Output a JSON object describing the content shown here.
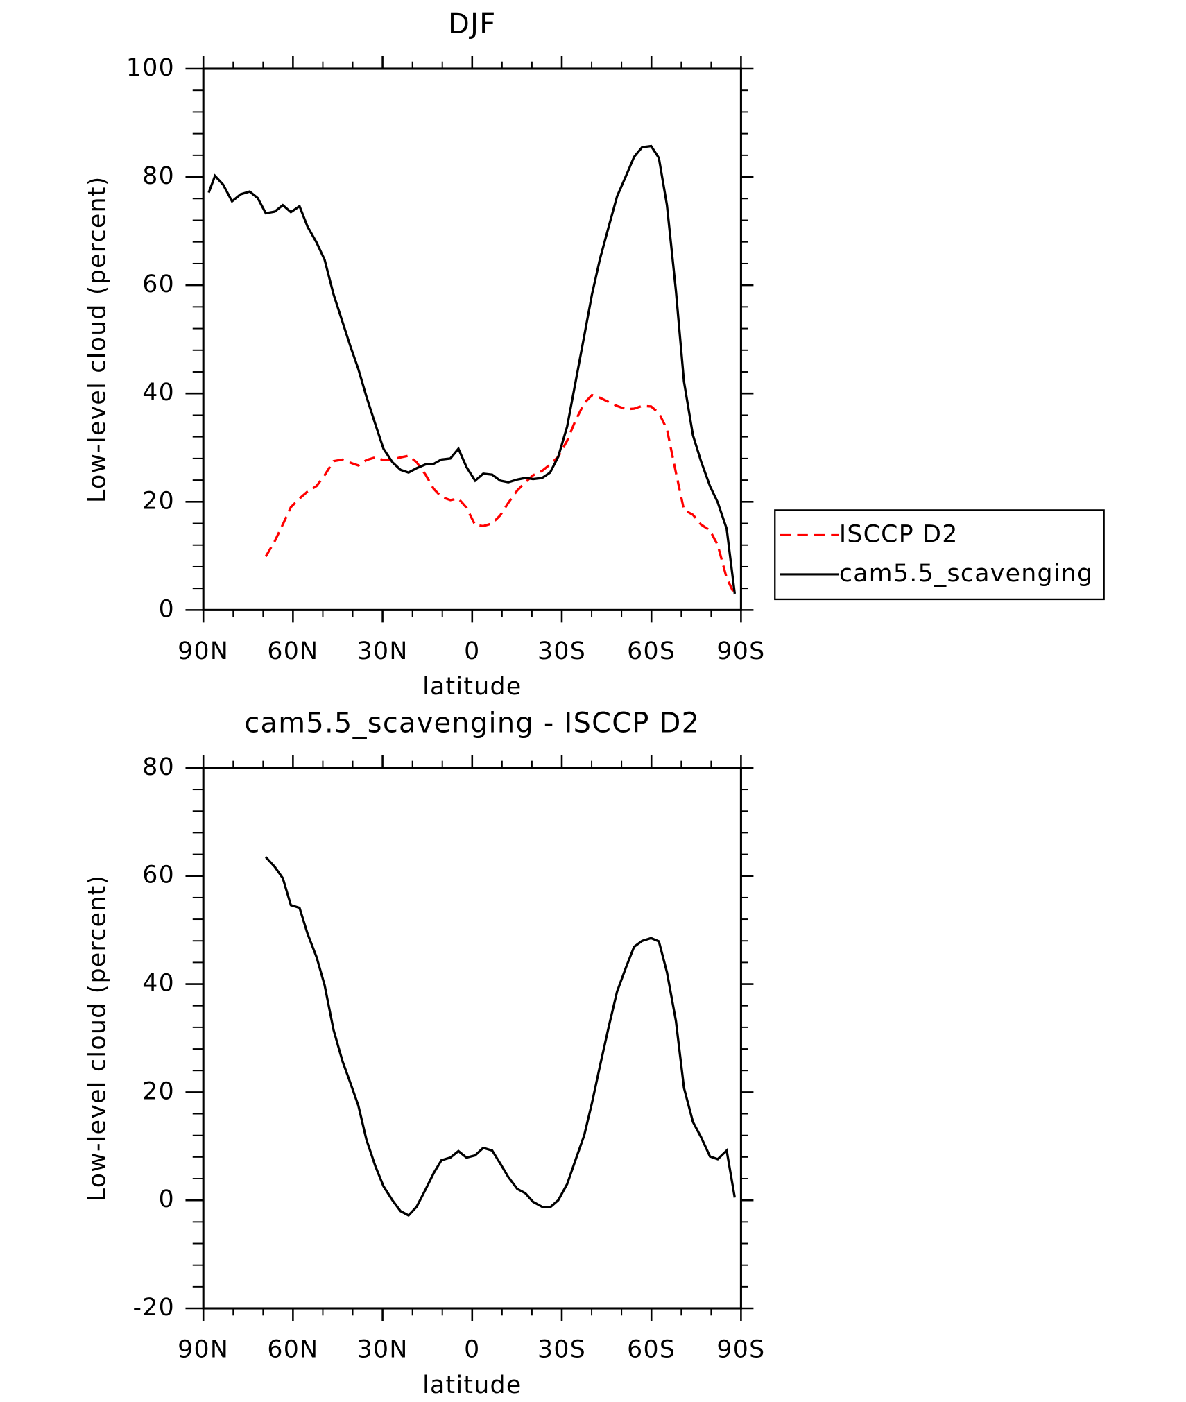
{
  "chart_data": [
    {
      "type": "line",
      "title": "DJF",
      "xlabel": "latitude",
      "ylabel": "Low-level cloud (percent)",
      "x": [
        88.2,
        86.1,
        83.4,
        80.4,
        77.5,
        74.5,
        71.8,
        69.1,
        66.1,
        63.4,
        60.7,
        57.8,
        55.1,
        52.1,
        49.4,
        46.4,
        43.4,
        40.7,
        38.1,
        35.4,
        32.4,
        29.7,
        26.7,
        24.0,
        21.3,
        18.6,
        15.6,
        12.9,
        10.3,
        7.3,
        4.6,
        1.9,
        -1.0,
        -3.7,
        -6.7,
        -9.4,
        -12.1,
        -15.1,
        -17.8,
        -20.4,
        -23.4,
        -26.1,
        -28.8,
        -31.8,
        -34.5,
        -37.5,
        -40.1,
        -42.8,
        -45.8,
        -48.5,
        -51.5,
        -54.2,
        -56.9,
        -59.9,
        -62.5,
        -65.2,
        -68.2,
        -70.9,
        -73.9,
        -76.6,
        -79.6,
        -82.2,
        -85.2,
        -87.9
      ],
      "xlim": [
        90,
        -90
      ],
      "xticks": [
        {
          "value": 90,
          "label": "90N"
        },
        {
          "value": 60,
          "label": "60N"
        },
        {
          "value": 30,
          "label": "30N"
        },
        0,
        {
          "value": -30,
          "label": "30S"
        },
        {
          "value": -60,
          "label": "60S"
        },
        {
          "value": -90,
          "label": "90S"
        }
      ],
      "ylim": [
        0,
        100
      ],
      "yticks": [
        0,
        20,
        40,
        60,
        80,
        100
      ],
      "legend": "right",
      "series": [
        {
          "name": "ISCCP D2",
          "color": "#ff0000",
          "dash": "dashed",
          "values": [
            null,
            null,
            null,
            null,
            null,
            null,
            null,
            9.9,
            12.7,
            15.8,
            19.0,
            20.6,
            21.9,
            22.9,
            24.9,
            27.5,
            27.8,
            27.2,
            26.7,
            27.7,
            28.2,
            27.7,
            27.8,
            28.2,
            28.5,
            27.3,
            25.0,
            22.4,
            20.9,
            20.3,
            20.6,
            18.9,
            15.7,
            15.5,
            16.0,
            17.5,
            19.8,
            22.1,
            23.6,
            24.9,
            25.7,
            26.9,
            28.3,
            31.3,
            34.9,
            38.2,
            39.7,
            39.2,
            38.4,
            37.7,
            37.1,
            37.2,
            37.7,
            37.6,
            36.4,
            33.4,
            25.4,
            18.5,
            17.6,
            15.8,
            14.7,
            12.0,
            5.9,
            2.8
          ]
        },
        {
          "name": "cam5.5_scavenging",
          "color": "#000000",
          "dash": "solid",
          "values": [
            77.1,
            80.2,
            78.6,
            75.5,
            76.8,
            77.3,
            76.1,
            73.3,
            73.6,
            74.8,
            73.5,
            74.6,
            70.8,
            67.9,
            64.7,
            58.3,
            53.2,
            48.6,
            44.5,
            39.4,
            34.3,
            29.8,
            27.3,
            25.9,
            25.4,
            26.2,
            26.9,
            27.0,
            27.8,
            28.0,
            29.8,
            26.4,
            23.9,
            25.2,
            25.0,
            23.9,
            23.6,
            24.1,
            24.4,
            24.2,
            24.4,
            25.4,
            28.3,
            33.9,
            41.8,
            50.6,
            58.3,
            64.9,
            71.0,
            76.4,
            80.2,
            83.7,
            85.5,
            85.7,
            83.5,
            74.8,
            59.0,
            42.2,
            32.3,
            27.5,
            22.9,
            19.9,
            15.0,
            3.0
          ]
        }
      ]
    },
    {
      "type": "line",
      "title": "cam5.5_scavenging - ISCCP D2",
      "xlabel": "latitude",
      "ylabel": "Low-level cloud (percent)",
      "x": [
        69.1,
        66.1,
        63.4,
        60.7,
        57.8,
        55.1,
        52.1,
        49.4,
        46.4,
        43.4,
        40.7,
        38.1,
        35.4,
        32.4,
        29.7,
        26.7,
        24.0,
        21.3,
        18.6,
        15.6,
        12.9,
        10.3,
        7.3,
        4.6,
        1.9,
        -1.0,
        -3.7,
        -6.7,
        -9.4,
        -12.1,
        -15.1,
        -17.8,
        -20.4,
        -23.4,
        -26.1,
        -28.8,
        -31.8,
        -34.5,
        -37.5,
        -40.1,
        -42.8,
        -45.8,
        -48.5,
        -51.5,
        -54.2,
        -56.9,
        -59.9,
        -62.5,
        -65.2,
        -68.2,
        -70.9,
        -73.9,
        -76.6,
        -79.6,
        -82.2,
        -85.2,
        -87.9
      ],
      "xlim": [
        90,
        -90
      ],
      "xticks": [
        {
          "value": 90,
          "label": "90N"
        },
        {
          "value": 60,
          "label": "60N"
        },
        {
          "value": 30,
          "label": "30N"
        },
        0,
        {
          "value": -30,
          "label": "30S"
        },
        {
          "value": -60,
          "label": "60S"
        },
        {
          "value": -90,
          "label": "90S"
        }
      ],
      "ylim": [
        -20,
        80
      ],
      "yticks": [
        -20,
        0,
        20,
        40,
        60,
        80
      ],
      "color": "#000000",
      "values": [
        63.5,
        61.7,
        59.6,
        54.6,
        54.1,
        49.3,
        45.0,
        39.8,
        31.5,
        25.7,
        21.6,
        17.5,
        11.2,
        6.3,
        2.6,
        0.0,
        -2.0,
        -2.8,
        -1.2,
        2.0,
        5.0,
        7.4,
        7.9,
        9.1,
        7.9,
        8.3,
        9.7,
        9.2,
        6.8,
        4.3,
        2.1,
        1.3,
        -0.3,
        -1.2,
        -1.3,
        0.0,
        3.0,
        7.3,
        12.0,
        18.0,
        24.9,
        32.3,
        38.6,
        43.1,
        46.9,
        48.0,
        48.5,
        47.9,
        42.2,
        33.2,
        20.8,
        14.5,
        11.7,
        8.1,
        7.6,
        9.2,
        0.5
      ]
    }
  ]
}
